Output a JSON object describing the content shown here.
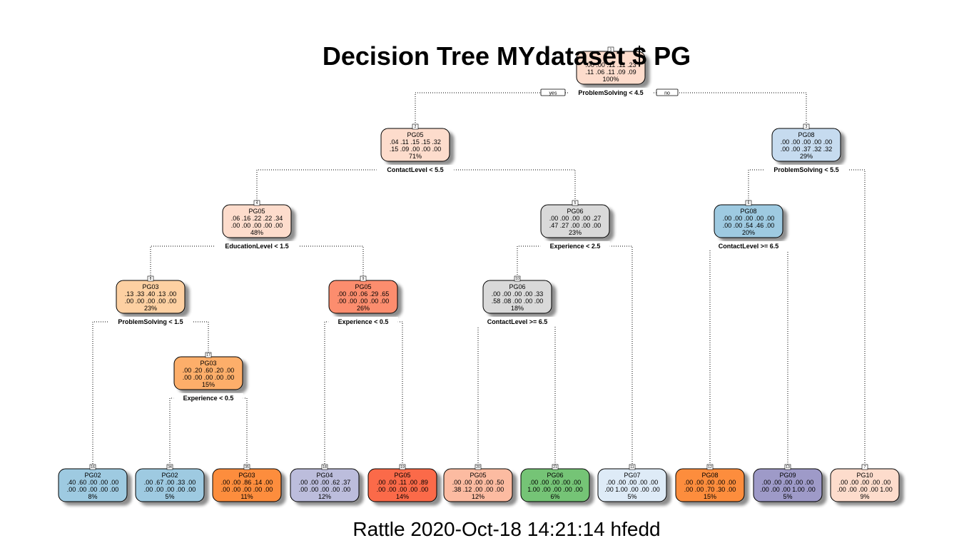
{
  "title": "Decision Tree MYdataset $ PG",
  "footer": "Rattle 2020-Oct-18 14:21:14 hfedd",
  "branch_labels": {
    "yes": "yes",
    "no": "no"
  },
  "nodes": [
    {
      "id": 1,
      "cls": "",
      "r1": ".00 .00 .11 .11 .23",
      "r2": ".11 .06 .11 .09 .09",
      "pct": "100%",
      "color": "#FDDCCC",
      "split": "ProblemSolving < 4.5"
    },
    {
      "id": 2,
      "cls": "PG05",
      "r1": ".04 .11 .15 .15 .32",
      "r2": ".15 .09 .00 .00 .00",
      "pct": "71%",
      "color": "#FDDCCC",
      "split": "ContactLevel < 5.5"
    },
    {
      "id": 3,
      "cls": "PG08",
      "r1": ".00 .00 .00 .00 .00",
      "r2": ".00 .00 .37 .32 .32",
      "pct": "29%",
      "color": "#C6DBEF",
      "split": "ProblemSolving < 5.5"
    },
    {
      "id": 4,
      "cls": "PG05",
      "r1": ".06 .16 .22 .22 .34",
      "r2": ".00 .00 .00 .00 .00",
      "pct": "48%",
      "color": "#FDDCCC",
      "split": "EducationLevel < 1.5"
    },
    {
      "id": 5,
      "cls": "PG06",
      "r1": ".00 .00 .00 .00 .27",
      "r2": ".47 .27 .00 .00 .00",
      "pct": "23%",
      "color": "#D9D9D9",
      "split": "Experience < 2.5"
    },
    {
      "id": 6,
      "cls": "PG08",
      "r1": ".00 .00 .00 .00 .00",
      "r2": ".00 .00 .54 .46 .00",
      "pct": "20%",
      "color": "#9ECAE1",
      "split": "ContactLevel >= 6.5"
    },
    {
      "id": 7,
      "cls": "PG10",
      "r1": ".00 .00 .00 .00 .00",
      "r2": ".00 .00 .00 .00 1.00",
      "pct": "9%",
      "color": "#FDDCCC",
      "split": ""
    },
    {
      "id": 8,
      "cls": "PG03",
      "r1": ".13 .33 .40 .13 .00",
      "r2": ".00 .00 .00 .00 .00",
      "pct": "23%",
      "color": "#FDD0A2",
      "split": "ProblemSolving < 1.5"
    },
    {
      "id": 9,
      "cls": "PG05",
      "r1": ".00 .00 .06 .29 .65",
      "r2": ".00 .00 .00 .00 .00",
      "pct": "26%",
      "color": "#FC8D6E",
      "split": "Experience < 0.5"
    },
    {
      "id": 10,
      "cls": "PG06",
      "r1": ".00 .00 .00 .00 .33",
      "r2": ".58 .08 .00 .00 .00",
      "pct": "18%",
      "color": "#D9D9D9",
      "split": "ContactLevel >= 6.5"
    },
    {
      "id": 11,
      "cls": "PG07",
      "r1": ".00 .00 .00 .00 .00",
      "r2": ".00 1.00 .00 .00 .00",
      "pct": "5%",
      "color": "#DEEBF7",
      "split": ""
    },
    {
      "id": 12,
      "cls": "PG08",
      "r1": ".00 .00 .00 .00 .00",
      "r2": ".00 .00 .70 .30 .00",
      "pct": "15%",
      "color": "#FD8D3C",
      "split": ""
    },
    {
      "id": 13,
      "cls": "PG09",
      "r1": ".00 .00 .00 .00 .00",
      "r2": ".00 .00 .00 1.00 .00",
      "pct": "5%",
      "color": "#9E9AC8",
      "split": ""
    },
    {
      "id": 16,
      "cls": "PG02",
      "r1": ".40 .60 .00 .00 .00",
      "r2": ".00 .00 .00 .00 .00",
      "pct": "8%",
      "color": "#9ECAE1",
      "split": ""
    },
    {
      "id": 17,
      "cls": "PG03",
      "r1": ".00 .20 .60 .20 .00",
      "r2": ".00 .00 .00 .00 .00",
      "pct": "15%",
      "color": "#FDAE6B",
      "split": "Experience < 0.5"
    },
    {
      "id": 18,
      "cls": "PG04",
      "r1": ".00 .00 .00 .62 .37",
      "r2": ".00 .00 .00 .00 .00",
      "pct": "12%",
      "color": "#BCBDDC",
      "split": ""
    },
    {
      "id": 19,
      "cls": "PG05",
      "r1": ".00 .00 .11 .00 .89",
      "r2": ".00 .00 .00 .00 .00",
      "pct": "14%",
      "color": "#FB6A4A",
      "split": ""
    },
    {
      "id": 20,
      "cls": "PG05",
      "r1": ".00 .00 .00 .00 .50",
      "r2": ".38 .12 .00 .00 .00",
      "pct": "12%",
      "color": "#FCBBA1",
      "split": ""
    },
    {
      "id": 21,
      "cls": "PG06",
      "r1": ".00 .00 .00 .00 .00",
      "r2": "1.00 .00 .00 .00 .00",
      "pct": "6%",
      "color": "#74C476",
      "split": ""
    },
    {
      "id": 34,
      "cls": "PG02",
      "r1": ".00 .67 .00 .33 .00",
      "r2": ".00 .00 .00 .00 .00",
      "pct": "5%",
      "color": "#9ECAE1",
      "split": ""
    },
    {
      "id": 35,
      "cls": "PG03",
      "r1": ".00 .00 .86 .14 .00",
      "r2": ".00 .00 .00 .00 .00",
      "pct": "11%",
      "color": "#FD8D3C",
      "split": ""
    }
  ],
  "edges": [
    [
      1,
      2
    ],
    [
      1,
      3
    ],
    [
      2,
      4
    ],
    [
      2,
      5
    ],
    [
      3,
      6
    ],
    [
      3,
      7
    ],
    [
      4,
      8
    ],
    [
      4,
      9
    ],
    [
      5,
      10
    ],
    [
      5,
      11
    ],
    [
      6,
      12
    ],
    [
      6,
      13
    ],
    [
      8,
      16
    ],
    [
      8,
      17
    ],
    [
      9,
      18
    ],
    [
      9,
      19
    ],
    [
      10,
      20
    ],
    [
      10,
      21
    ],
    [
      17,
      34
    ],
    [
      17,
      35
    ]
  ]
}
